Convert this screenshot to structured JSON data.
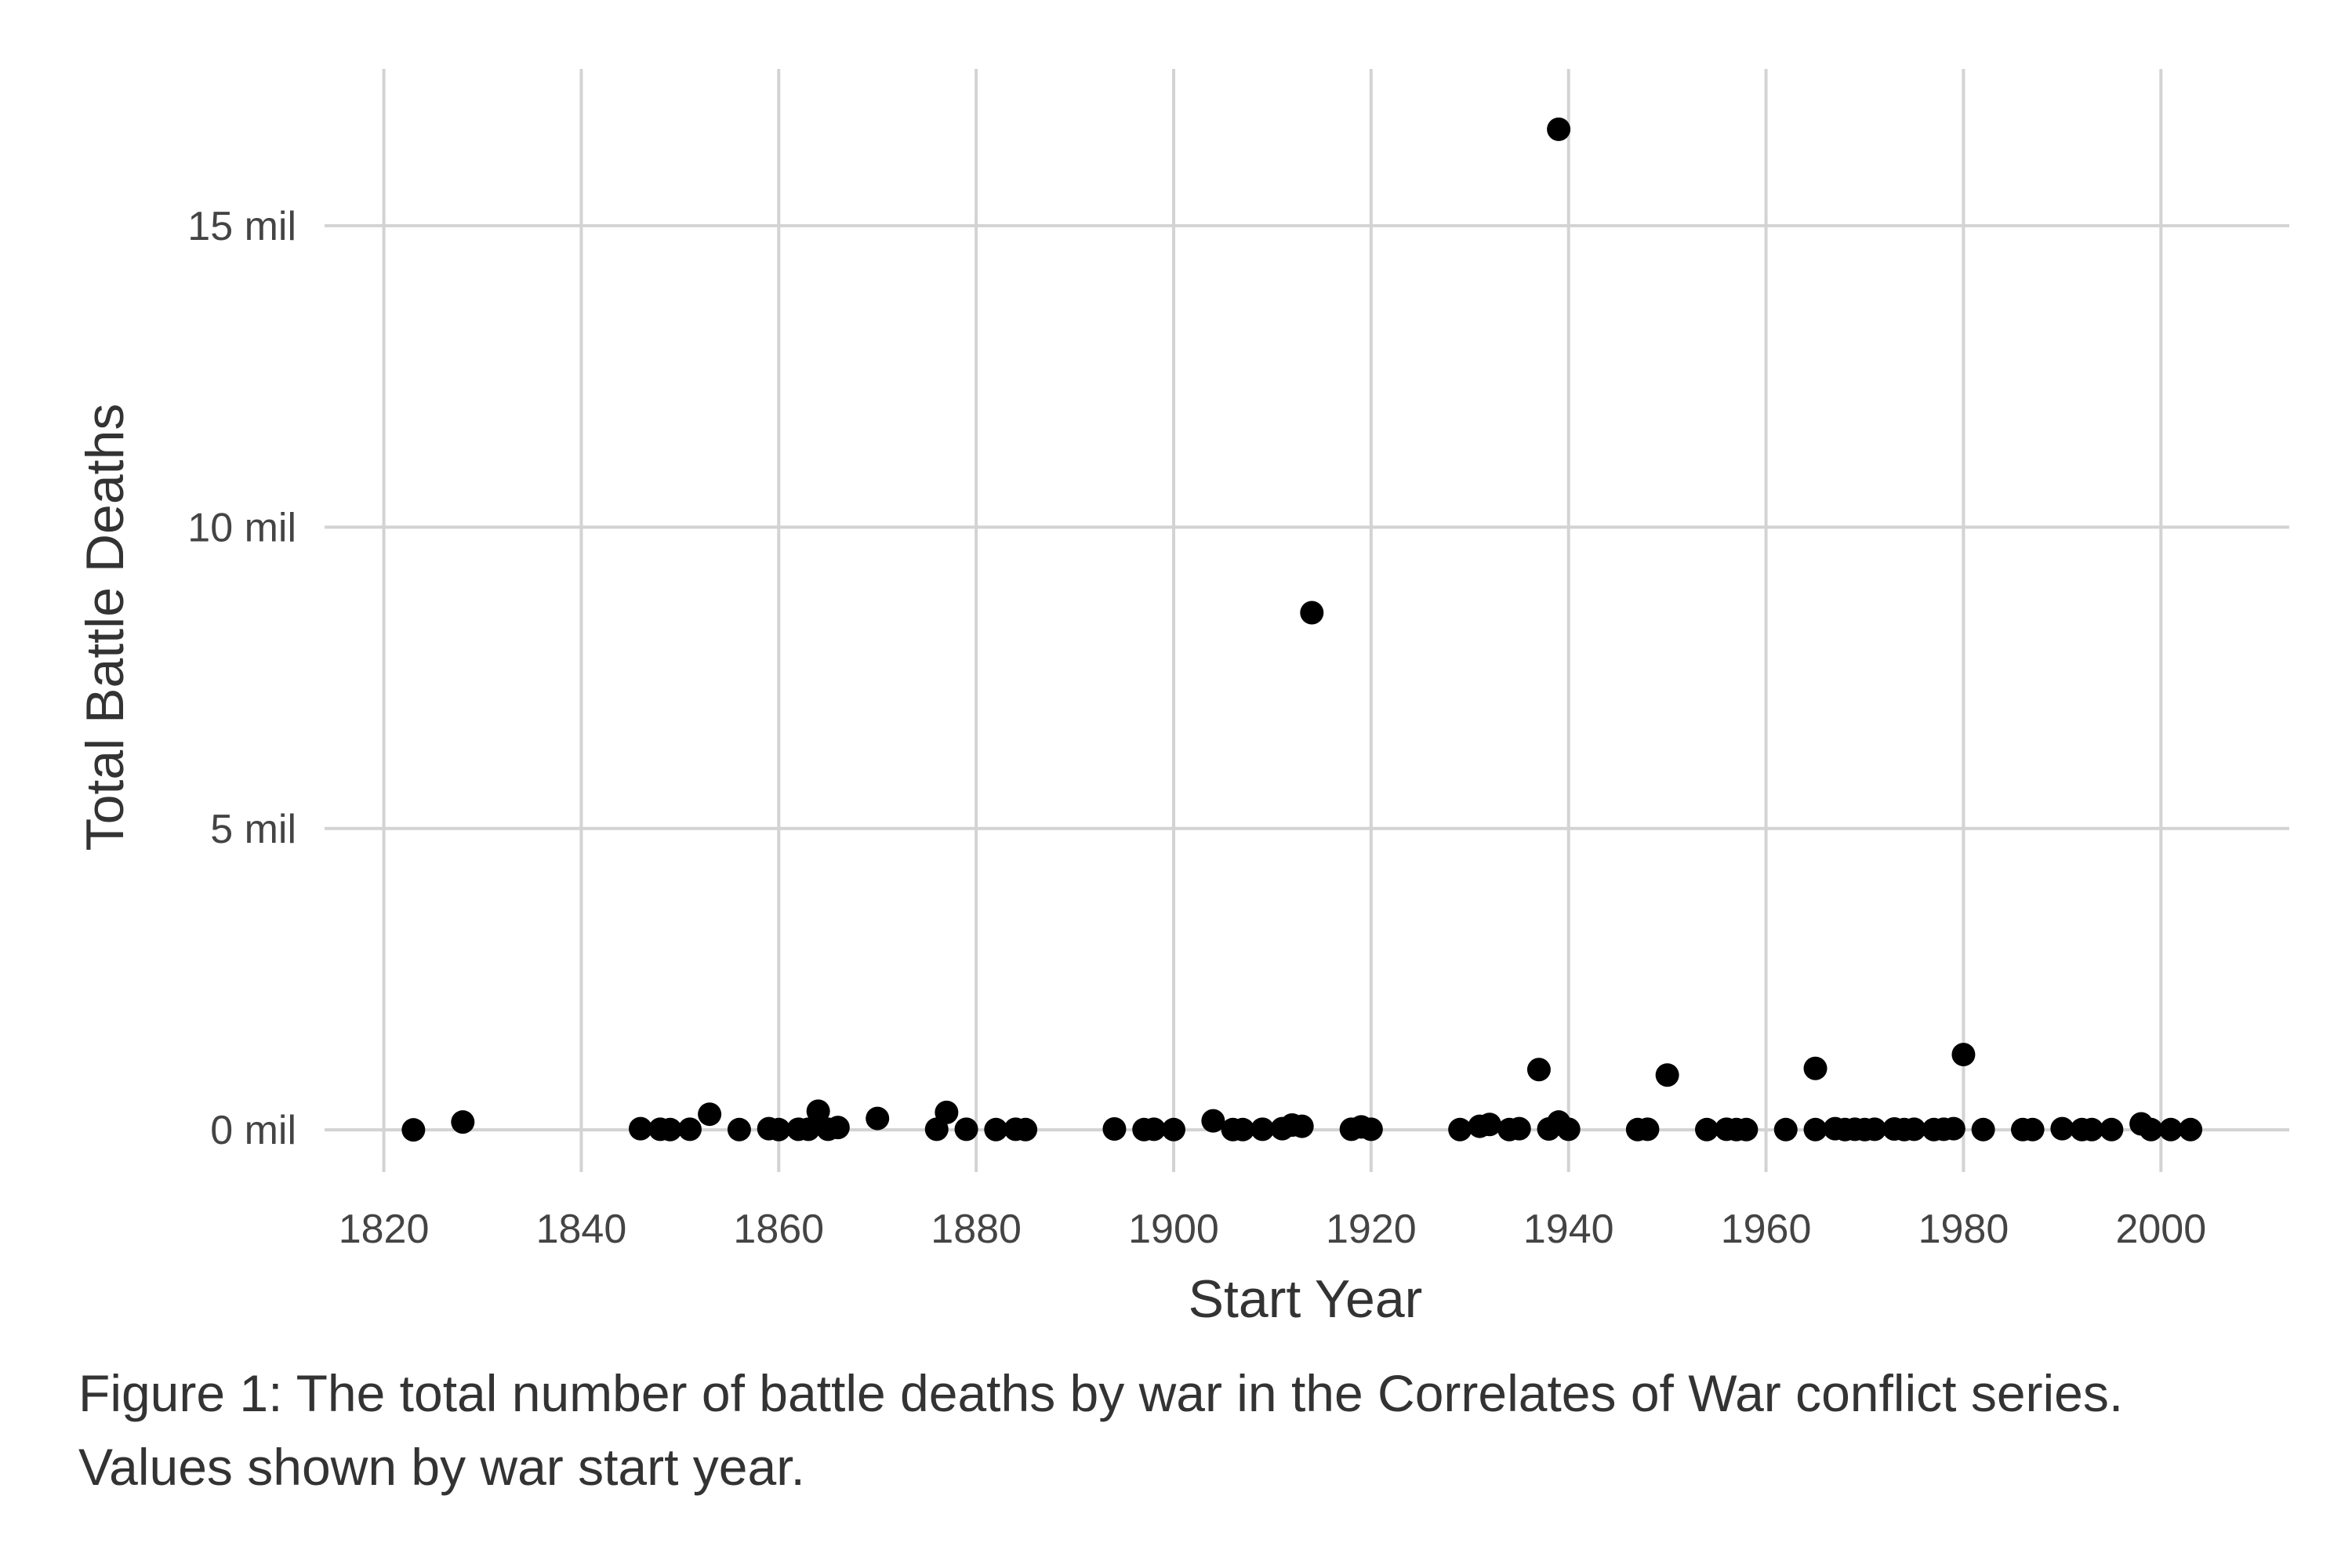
{
  "chart_data": {
    "type": "scatter",
    "xlabel": "Start Year",
    "ylabel": "Total Battle Deaths",
    "x_ticks": [
      1820,
      1840,
      1860,
      1880,
      1900,
      1920,
      1940,
      1960,
      1980,
      2000
    ],
    "y_ticks": [
      {
        "value": 0,
        "label": "0 mil"
      },
      {
        "value": 5000000,
        "label": "5 mil"
      },
      {
        "value": 10000000,
        "label": "10 mil"
      },
      {
        "value": 15000000,
        "label": "15 mil"
      }
    ],
    "xlim": [
      1814,
      2013
    ],
    "ylim": [
      -700000,
      17600000
    ],
    "grid": true,
    "legend": "none",
    "points": [
      {
        "x": 1823,
        "y": 0
      },
      {
        "x": 1828,
        "y": 130000
      },
      {
        "x": 1846,
        "y": 20000
      },
      {
        "x": 1848,
        "y": 10000
      },
      {
        "x": 1849,
        "y": 5000
      },
      {
        "x": 1851,
        "y": 10000
      },
      {
        "x": 1853,
        "y": 260000
      },
      {
        "x": 1856,
        "y": 5000
      },
      {
        "x": 1859,
        "y": 20000
      },
      {
        "x": 1860,
        "y": 5000
      },
      {
        "x": 1862,
        "y": 10000
      },
      {
        "x": 1863,
        "y": 10000
      },
      {
        "x": 1864,
        "y": 310000
      },
      {
        "x": 1865,
        "y": 10000
      },
      {
        "x": 1866,
        "y": 40000
      },
      {
        "x": 1870,
        "y": 190000
      },
      {
        "x": 1876,
        "y": 10000
      },
      {
        "x": 1877,
        "y": 290000
      },
      {
        "x": 1879,
        "y": 10000
      },
      {
        "x": 1882,
        "y": 5000
      },
      {
        "x": 1884,
        "y": 10000
      },
      {
        "x": 1885,
        "y": 5000
      },
      {
        "x": 1894,
        "y": 15000
      },
      {
        "x": 1897,
        "y": 5000
      },
      {
        "x": 1898,
        "y": 10000
      },
      {
        "x": 1900,
        "y": 5000
      },
      {
        "x": 1904,
        "y": 150000
      },
      {
        "x": 1906,
        "y": 5000
      },
      {
        "x": 1907,
        "y": 5000
      },
      {
        "x": 1909,
        "y": 10000
      },
      {
        "x": 1911,
        "y": 20000
      },
      {
        "x": 1912,
        "y": 80000
      },
      {
        "x": 1913,
        "y": 60000
      },
      {
        "x": 1914,
        "y": 8580000
      },
      {
        "x": 1918,
        "y": 10000
      },
      {
        "x": 1919,
        "y": 50000
      },
      {
        "x": 1920,
        "y": 10000
      },
      {
        "x": 1929,
        "y": 5000
      },
      {
        "x": 1931,
        "y": 60000
      },
      {
        "x": 1932,
        "y": 90000
      },
      {
        "x": 1934,
        "y": 5000
      },
      {
        "x": 1935,
        "y": 20000
      },
      {
        "x": 1937,
        "y": 1000000
      },
      {
        "x": 1938,
        "y": 15000
      },
      {
        "x": 1939,
        "y": 16600000
      },
      {
        "x": 1939,
        "y": 130000
      },
      {
        "x": 1940,
        "y": 10000
      },
      {
        "x": 1947,
        "y": 5000
      },
      {
        "x": 1948,
        "y": 10000
      },
      {
        "x": 1950,
        "y": 910000
      },
      {
        "x": 1954,
        "y": 5000
      },
      {
        "x": 1956,
        "y": 10000
      },
      {
        "x": 1957,
        "y": 5000
      },
      {
        "x": 1958,
        "y": 5000
      },
      {
        "x": 1962,
        "y": 5000
      },
      {
        "x": 1965,
        "y": 1020000
      },
      {
        "x": 1965,
        "y": 5000
      },
      {
        "x": 1967,
        "y": 20000
      },
      {
        "x": 1968,
        "y": 5000
      },
      {
        "x": 1969,
        "y": 10000
      },
      {
        "x": 1970,
        "y": 5000
      },
      {
        "x": 1971,
        "y": 10000
      },
      {
        "x": 1973,
        "y": 15000
      },
      {
        "x": 1974,
        "y": 5000
      },
      {
        "x": 1975,
        "y": 10000
      },
      {
        "x": 1977,
        "y": 5000
      },
      {
        "x": 1978,
        "y": 10000
      },
      {
        "x": 1979,
        "y": 20000
      },
      {
        "x": 1980,
        "y": 1250000
      },
      {
        "x": 1982,
        "y": 5000
      },
      {
        "x": 1986,
        "y": 5000
      },
      {
        "x": 1987,
        "y": 5000
      },
      {
        "x": 1990,
        "y": 20000
      },
      {
        "x": 1992,
        "y": 5000
      },
      {
        "x": 1993,
        "y": 5000
      },
      {
        "x": 1995,
        "y": 5000
      },
      {
        "x": 1998,
        "y": 100000
      },
      {
        "x": 1999,
        "y": 5000
      },
      {
        "x": 2001,
        "y": 5000
      },
      {
        "x": 2003,
        "y": 5000
      }
    ]
  },
  "caption": "Figure 1: The total number of battle deaths by war in the Correlates of War conflict series. Values shown by war start year."
}
